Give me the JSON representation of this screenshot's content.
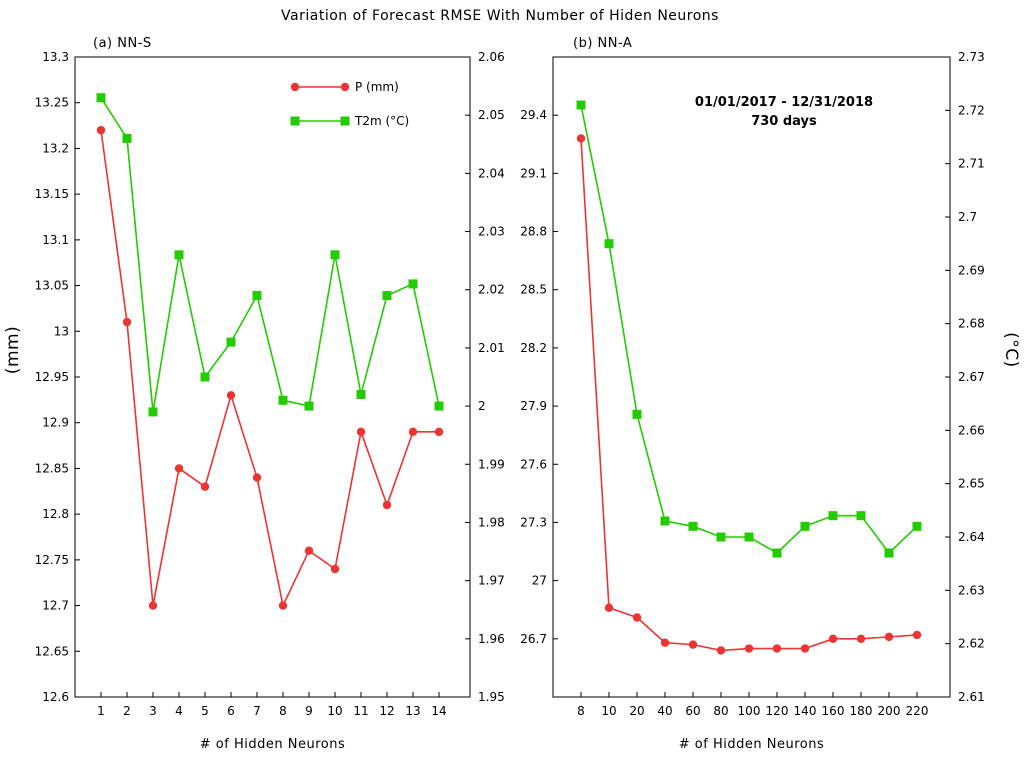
{
  "title": "Variation of Forecast RMSE With Number of Hiden Neurons",
  "colors": {
    "precip": "#ee3333",
    "t2m": "#22cc00",
    "axis": "#000000"
  },
  "chart_data": [
    {
      "type": "line",
      "panel_label": "(a) NN-S",
      "xlabel": "# of Hidden Neurons",
      "ylabel_left": "(mm)",
      "ylabel_right": "",
      "categories": [
        "1",
        "2",
        "3",
        "4",
        "5",
        "6",
        "7",
        "8",
        "9",
        "10",
        "11",
        "12",
        "13",
        "14"
      ],
      "left_ylim": [
        12.6,
        13.3
      ],
      "left_yticks": [
        "12.6",
        "12.65",
        "12.7",
        "12.75",
        "12.8",
        "12.85",
        "12.9",
        "12.95",
        "13",
        "13.05",
        "13.1",
        "13.15",
        "13.2",
        "13.25",
        "13.3"
      ],
      "right_ylim": [
        1.95,
        2.06
      ],
      "right_yticks": [
        "1.95",
        "1.96",
        "1.97",
        "1.98",
        "1.99",
        "2",
        "2.01",
        "2.02",
        "2.03",
        "2.04",
        "2.05",
        "2.06"
      ],
      "legend_position": "top-right",
      "legend": [
        {
          "name": "P  (mm)",
          "marker": "circle"
        },
        {
          "name": "T2m  (°C)",
          "marker": "square"
        }
      ],
      "series": [
        {
          "name": "P (mm)",
          "axis": "left",
          "marker": "circle",
          "values": [
            13.22,
            13.01,
            12.7,
            12.85,
            12.83,
            12.93,
            12.84,
            12.7,
            12.76,
            12.74,
            12.89,
            12.81,
            12.89,
            12.89
          ]
        },
        {
          "name": "T2m (°C)",
          "axis": "right",
          "marker": "square",
          "values": [
            2.053,
            2.046,
            1.999,
            2.026,
            2.005,
            2.011,
            2.019,
            2.001,
            2.0,
            2.026,
            2.002,
            2.019,
            2.021,
            2.0
          ]
        }
      ],
      "grid": false
    },
    {
      "type": "line",
      "panel_label": "(b) NN-A",
      "xlabel": "# of Hidden Neurons",
      "ylabel_left": "",
      "ylabel_right": "(°C)",
      "categories": [
        "8",
        "10",
        "20",
        "40",
        "60",
        "80",
        "100",
        "120",
        "140",
        "160",
        "180",
        "200",
        "220"
      ],
      "left_ylim": [
        26.4,
        29.7
      ],
      "left_yticks": [
        "26.7",
        "27",
        "27.3",
        "27.6",
        "27.9",
        "28.2",
        "28.5",
        "28.8",
        "29.1",
        "29.4"
      ],
      "right_ylim": [
        2.61,
        2.73
      ],
      "right_yticks": [
        "2.61",
        "2.62",
        "2.63",
        "2.64",
        "2.65",
        "2.66",
        "2.67",
        "2.68",
        "2.69",
        "2.7",
        "2.71",
        "2.72",
        "2.73"
      ],
      "annotation": [
        "01/01/2017 - 12/31/2018",
        "730 days"
      ],
      "series": [
        {
          "name": "P (mm)",
          "axis": "left",
          "marker": "circle",
          "values": [
            29.28,
            26.86,
            26.81,
            26.68,
            26.67,
            26.64,
            26.65,
            26.65,
            26.65,
            26.7,
            26.7,
            26.71,
            26.72
          ]
        },
        {
          "name": "T2m (°C)",
          "axis": "right",
          "marker": "square",
          "values": [
            2.721,
            2.695,
            2.663,
            2.643,
            2.642,
            2.64,
            2.64,
            2.637,
            2.642,
            2.644,
            2.644,
            2.637,
            2.642
          ]
        }
      ],
      "grid": false
    }
  ]
}
